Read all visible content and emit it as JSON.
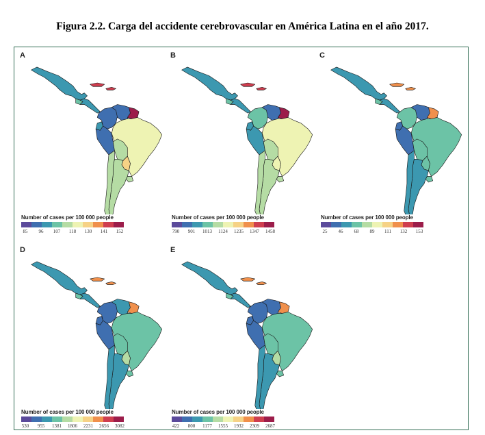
{
  "figure": {
    "caption": "Figura 2.2. Carga del accidente cerebrovascular en América Latina en el año 2017."
  },
  "palette": [
    "#5b4a9b",
    "#3f6fb0",
    "#3c98b0",
    "#6cc3a6",
    "#b5dca4",
    "#eef3b3",
    "#f6d286",
    "#f0904c",
    "#cf3e4f",
    "#9c1d4a"
  ],
  "panels": [
    {
      "letter": "A",
      "legend_title": "Number of cases per 100 000 people",
      "ticks": [
        "85",
        "96",
        "107",
        "118",
        "130",
        "141",
        "152"
      ],
      "regions": {
        "mexico": 2,
        "central_america": 2,
        "guatemala": 3,
        "caribbean": 8,
        "colombia": 1,
        "venezuela": 1,
        "guyanas": 9,
        "ecuador": 2,
        "peru": 1,
        "bolivia": 4,
        "brazil": 5,
        "paraguay": 6,
        "chile": 4,
        "argentina": 4,
        "uruguay": 4
      }
    },
    {
      "letter": "B",
      "legend_title": "Number of cases per 100 000 people",
      "ticks": [
        "790",
        "901",
        "1013",
        "1124",
        "1235",
        "1347",
        "1458"
      ],
      "regions": {
        "mexico": 2,
        "central_america": 2,
        "guatemala": 3,
        "caribbean": 8,
        "colombia": 3,
        "venezuela": 1,
        "guyanas": 9,
        "ecuador": 2,
        "peru": 2,
        "bolivia": 4,
        "brazil": 5,
        "paraguay": 5,
        "chile": 4,
        "argentina": 4,
        "uruguay": 4
      }
    },
    {
      "letter": "C",
      "legend_title": "Number of cases per 100 000 people",
      "ticks": [
        "25",
        "46",
        "68",
        "89",
        "111",
        "132",
        "153"
      ],
      "regions": {
        "mexico": 2,
        "central_america": 2,
        "guatemala": 3,
        "caribbean": 7,
        "colombia": 3,
        "venezuela": 1,
        "guyanas": 7,
        "ecuador": 1,
        "peru": 1,
        "bolivia": 3,
        "brazil": 3,
        "paraguay": 3,
        "chile": 2,
        "argentina": 2,
        "uruguay": 3
      }
    },
    {
      "letter": "D",
      "legend_title": "Number of cases per 100 000 people",
      "ticks": [
        "530",
        "955",
        "1381",
        "1806",
        "2231",
        "2656",
        "3082"
      ],
      "regions": {
        "mexico": 2,
        "central_america": 2,
        "guatemala": 3,
        "caribbean": 7,
        "colombia": 1,
        "venezuela": 2,
        "guyanas": 7,
        "ecuador": 1,
        "peru": 1,
        "bolivia": 3,
        "brazil": 3,
        "paraguay": 4,
        "chile": 2,
        "argentina": 2,
        "uruguay": 3
      }
    },
    {
      "letter": "E",
      "legend_title": "Number of cases per 100 000 people",
      "ticks": [
        "422",
        "800",
        "1177",
        "1555",
        "1932",
        "2309",
        "2687"
      ],
      "regions": {
        "mexico": 2,
        "central_america": 2,
        "guatemala": 3,
        "caribbean": 7,
        "colombia": 1,
        "venezuela": 1,
        "guyanas": 7,
        "ecuador": 1,
        "peru": 1,
        "bolivia": 3,
        "brazil": 3,
        "paraguay": 4,
        "chile": 2,
        "argentina": 2,
        "uruguay": 3
      }
    }
  ]
}
